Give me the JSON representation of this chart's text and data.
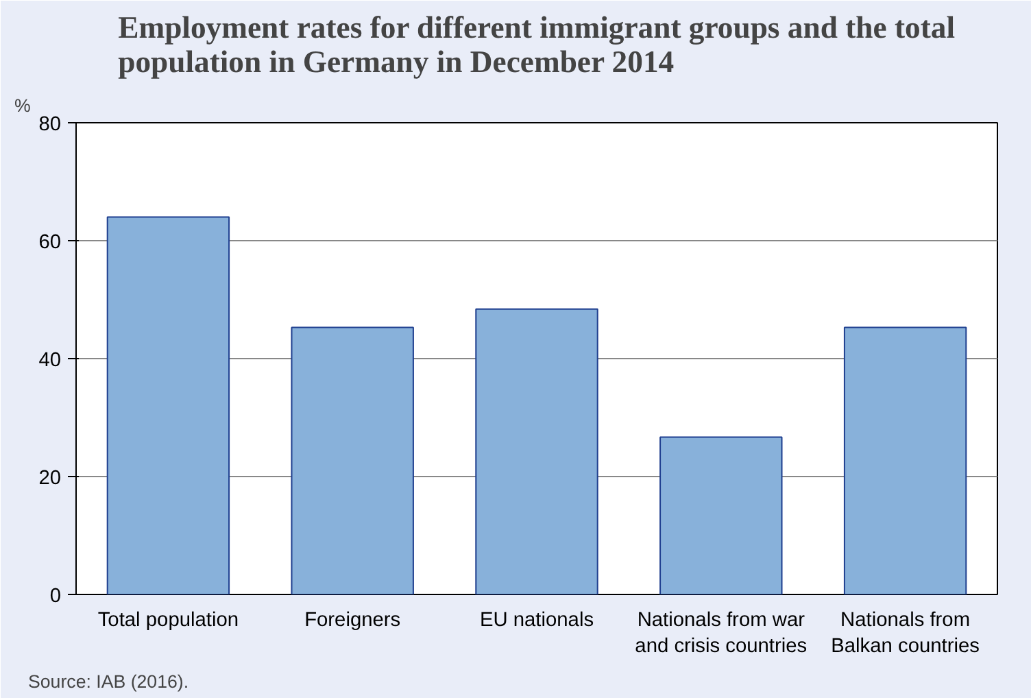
{
  "chart_data": {
    "type": "bar",
    "title": "Employment rates for different immigrant groups and the total population in Germany in December 2014",
    "ylabel": "%",
    "categories": [
      "Total population",
      "Foreigners",
      "EU nationals",
      "Nationals from war\nand crisis countries",
      "Nationals from\nBalkan countries"
    ],
    "values": [
      64.0,
      45.3,
      48.4,
      26.7,
      45.3
    ],
    "color": "#88b1da",
    "ylim": [
      0,
      80
    ],
    "yticks": [
      0,
      20,
      40,
      60,
      80
    ],
    "grid": "y",
    "annotations": [
      "Source: IAB (2016)."
    ]
  }
}
